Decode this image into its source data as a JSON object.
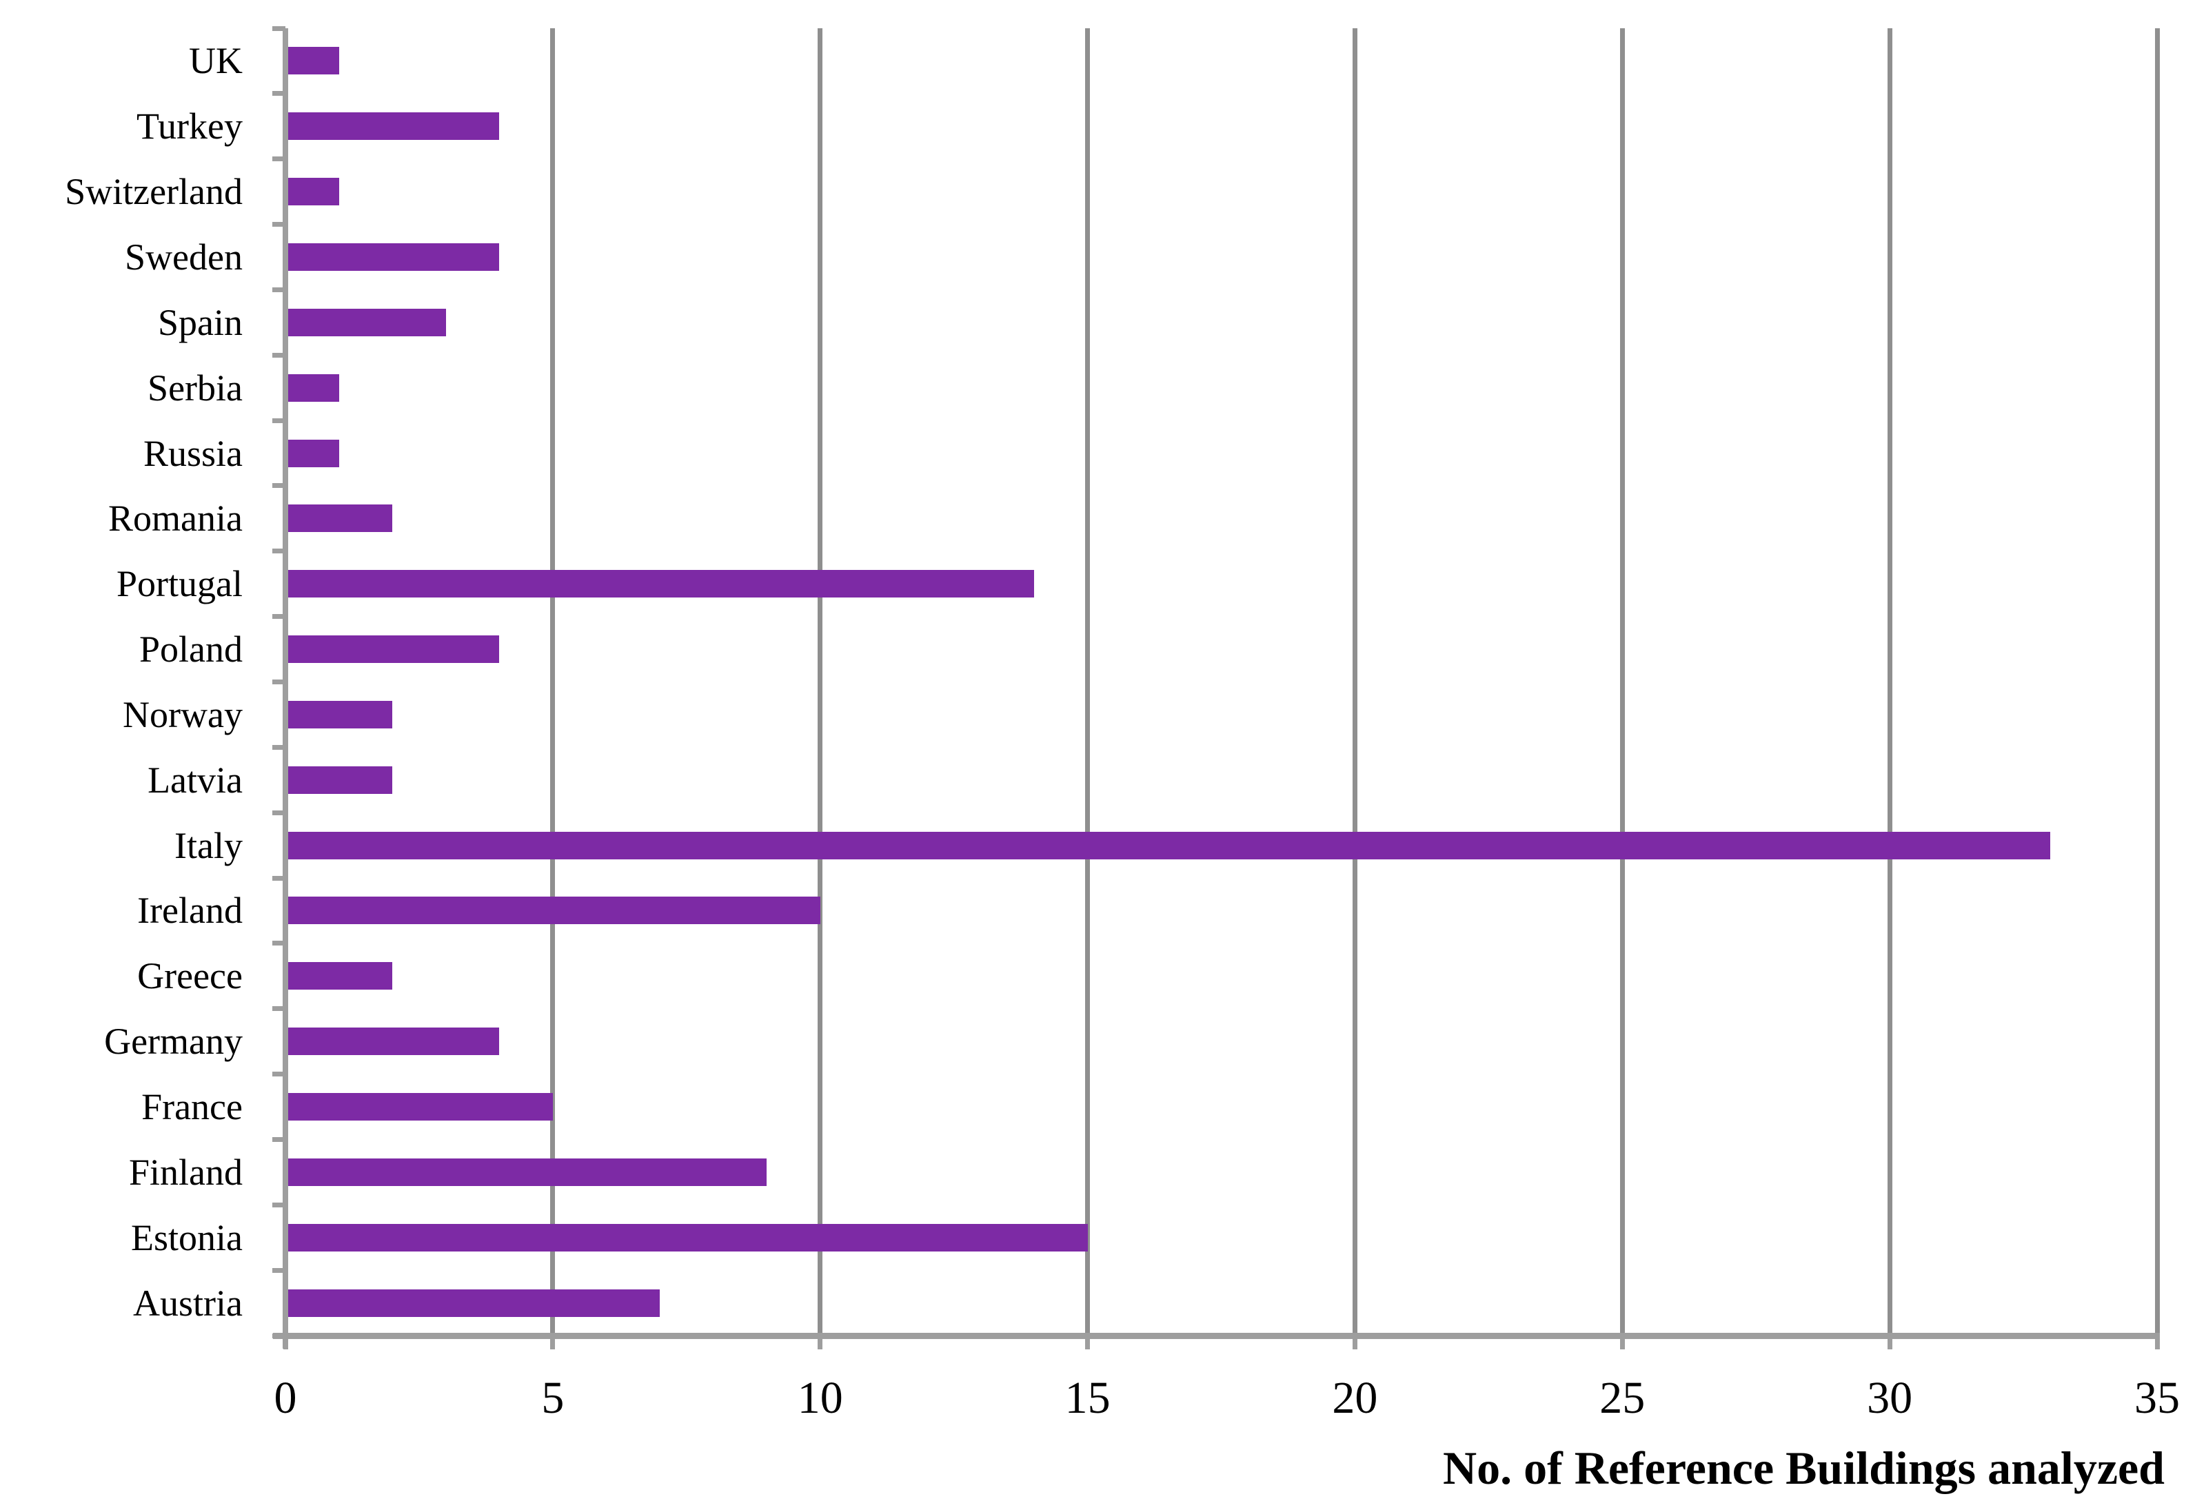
{
  "chart_data": {
    "type": "bar",
    "orientation": "horizontal",
    "title": "",
    "xlabel": "No. of Reference Buildings analyzed",
    "ylabel": "",
    "categories": [
      "UK",
      "Turkey",
      "Switzerland",
      "Sweden",
      "Spain",
      "Serbia",
      "Russia",
      "Romania",
      "Portugal",
      "Poland",
      "Norway",
      "Latvia",
      "Italy",
      "Ireland",
      "Greece",
      "Germany",
      "France",
      "Finland",
      "Estonia",
      "Austria"
    ],
    "values": [
      1,
      4,
      1,
      4,
      3,
      1,
      1,
      2,
      14,
      4,
      2,
      2,
      33,
      10,
      2,
      4,
      5,
      9,
      15,
      7
    ],
    "xlim": [
      0,
      35
    ],
    "xticks": [
      0,
      5,
      10,
      15,
      20,
      25,
      30,
      35
    ],
    "grid": "vertical gridlines every 5 units",
    "legend": "none",
    "colors": {
      "bar": "#7D2AA5",
      "axis": "#9E9E9E",
      "gridline": "#8F8F8F",
      "text": "#000000"
    }
  }
}
